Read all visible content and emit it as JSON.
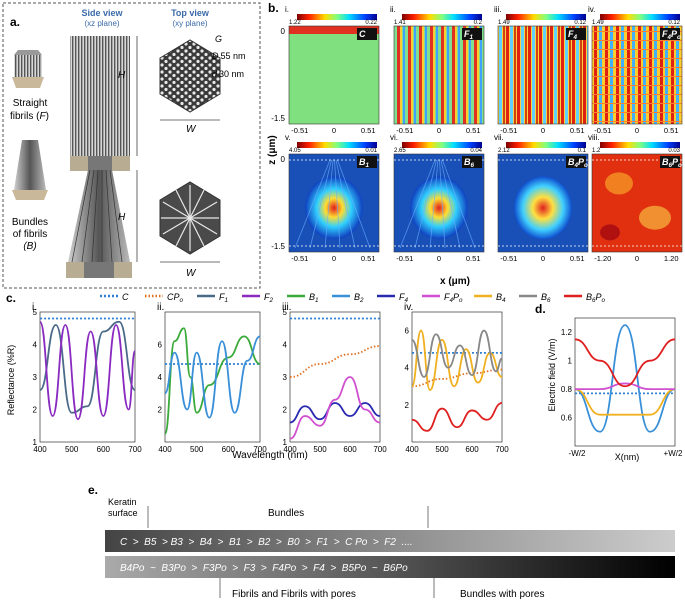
{
  "panel_a": {
    "label": "a.",
    "side_view_title_1": "Side view",
    "side_view_title_2": "(xz plane)",
    "top_view_title_1": "Top view",
    "top_view_title_2": "(xy plane)",
    "straight_1": "Straight",
    "straight_2": "fibrils (",
    "straight_f": "F",
    "straight_close": ")",
    "bundles_1": "Bundles",
    "bundles_2": "of fibrils",
    "bundles_3": "(B)",
    "H": "H",
    "W": "W",
    "G": "G",
    "D": "D",
    "D_val": "55 nm",
    "d": "d",
    "d_val": "30 nm",
    "colors": {
      "title": "#3a6aa8"
    }
  },
  "panel_b": {
    "label": "b.",
    "zlabel": "z (μm)",
    "xlabel": "x (μm)",
    "maps": [
      {
        "roman": "i.",
        "cmax": "1.22",
        "cmin": "0.22",
        "tag": "C"
      },
      {
        "roman": "ii.",
        "cmax": "1.41",
        "cmin": "0.2",
        "tag": "F1"
      },
      {
        "roman": "iii.",
        "cmax": "1.49",
        "cmin": "0.12",
        "tag": "F4"
      },
      {
        "roman": "iv.",
        "cmax": "1.49",
        "cmin": "0.12",
        "tag": "F4Po"
      },
      {
        "roman": "v.",
        "cmax": "4.05",
        "cmin": "0.01",
        "tag": "B1"
      },
      {
        "roman": "vi.",
        "cmax": "2.65",
        "cmin": "0.04",
        "tag": "B6"
      },
      {
        "roman": "vii.",
        "cmax": "2.12",
        "cmin": "0.1",
        "tag": "B4Po"
      },
      {
        "roman": "viii.",
        "cmax": "1.2",
        "cmin": "0.03",
        "tag": "B6Po"
      }
    ],
    "z_ticks": [
      "0",
      "-1.5"
    ],
    "x_ticks": [
      "-0.51",
      "0",
      "0.51"
    ],
    "x_ticks_wide": [
      "-1.20",
      "0",
      "1.20"
    ]
  },
  "panel_c": {
    "label": "c.",
    "ylabel": "Reflectance (%R)",
    "xlabel": "Wavelength (nm)",
    "legend": [
      {
        "key": "C",
        "color": "#2f7fd0"
      },
      {
        "key": "CPo",
        "color": "#e07020"
      },
      {
        "key": "F1",
        "color": "#4a6a88"
      },
      {
        "key": "F2",
        "color": "#8a2ac0"
      },
      {
        "key": "B1",
        "color": "#3aaa3a"
      },
      {
        "key": "B2",
        "color": "#3a90d8"
      },
      {
        "key": "F4",
        "color": "#2a2ab0"
      },
      {
        "key": "F4Po",
        "color": "#d050d0"
      },
      {
        "key": "B4",
        "color": "#f0b020"
      },
      {
        "key": "B6",
        "color": "#888888"
      },
      {
        "key": "B6Po",
        "color": "#e02020"
      }
    ],
    "sub": [
      "i.",
      "ii.",
      "iii.",
      "iv."
    ],
    "x_ticks": [
      "400",
      "500",
      "600",
      "700"
    ]
  },
  "panel_d": {
    "label": "d.",
    "ylabel": "Electric field (V/m)",
    "xlabel": "X(nm)",
    "y_ticks": [
      "1.2",
      "1",
      "0.8",
      "0.6"
    ],
    "x_ticks": [
      "-W/2",
      "+W/2"
    ]
  },
  "panel_e": {
    "label": "e.",
    "keratin_1": "Keratin",
    "keratin_2": "surface",
    "bundles": "Bundles",
    "fibrils": "Fibrils and Fibrils with pores",
    "bundles_pores": "Bundles with pores",
    "row1": "C  >  B5  > B3  >  B4  >  B1  >  B2  >  B0  >  F1  >  C Po  >  F2  ....",
    "row2": "B4Po  ~  B3Po  >  F3Po  >  F3  >  F4Po  >  F4  >  B5Po  ~  B6Po"
  },
  "chart_data": [
    {
      "type": "line",
      "title": "c.i",
      "xlabel": "Wavelength (nm)",
      "ylabel": "Reflectance (%R)",
      "xlim": [
        400,
        700
      ],
      "ylim": [
        1,
        5
      ],
      "series": [
        {
          "name": "C",
          "x": [
            400,
            700
          ],
          "values": [
            4.8,
            4.8
          ]
        },
        {
          "name": "F1",
          "x": [
            400,
            450,
            500,
            550,
            600,
            650,
            700
          ],
          "values": [
            2.6,
            4.6,
            1.9,
            2.1,
            4.4,
            4.7,
            2.6
          ]
        },
        {
          "name": "F2",
          "x": [
            400,
            440,
            480,
            520,
            560,
            600,
            640,
            680,
            700
          ],
          "values": [
            4.7,
            1.8,
            4.6,
            1.7,
            4.4,
            1.8,
            4.6,
            2.0,
            3.8
          ]
        }
      ]
    },
    {
      "type": "line",
      "title": "c.ii",
      "xlim": [
        400,
        700
      ],
      "ylim": [
        0,
        8
      ],
      "series": [
        {
          "name": "C",
          "x": [
            400,
            700
          ],
          "values": [
            4.8,
            4.8
          ]
        },
        {
          "name": "B1",
          "x": [
            400,
            430,
            460,
            480,
            500,
            540,
            600,
            650,
            700
          ],
          "values": [
            0.5,
            6.2,
            7.0,
            4.0,
            1.8,
            3.5,
            5.2,
            6.5,
            4.8
          ]
        },
        {
          "name": "B2",
          "x": [
            400,
            430,
            470,
            500,
            540,
            580,
            620,
            660,
            700
          ],
          "values": [
            3.0,
            5.5,
            2.0,
            5.5,
            1.5,
            6.2,
            1.8,
            5.0,
            6.5
          ]
        }
      ]
    },
    {
      "type": "line",
      "title": "c.iii",
      "xlim": [
        400,
        700
      ],
      "ylim": [
        1,
        5
      ],
      "series": [
        {
          "name": "C",
          "x": [
            400,
            700
          ],
          "values": [
            4.8,
            4.8
          ]
        },
        {
          "name": "CPo",
          "x": [
            400,
            500,
            600,
            700
          ],
          "values": [
            3.0,
            3.4,
            3.7,
            3.95
          ]
        },
        {
          "name": "F4",
          "x": [
            400,
            450,
            500,
            550,
            600,
            650,
            700
          ],
          "values": [
            1.6,
            2.1,
            1.7,
            2.2,
            1.8,
            2.2,
            1.8
          ]
        },
        {
          "name": "F4Po",
          "x": [
            400,
            450,
            500,
            550,
            600,
            650,
            700
          ],
          "values": [
            1.1,
            1.8,
            1.5,
            2.3,
            3.0,
            2.0,
            1.6
          ]
        }
      ]
    },
    {
      "type": "line",
      "title": "c.iv",
      "xlim": [
        400,
        700
      ],
      "ylim": [
        0,
        7
      ],
      "series": [
        {
          "name": "C",
          "x": [
            400,
            700
          ],
          "values": [
            4.8,
            4.8
          ]
        },
        {
          "name": "CPo",
          "x": [
            400,
            500,
            600,
            700
          ],
          "values": [
            3.0,
            3.4,
            3.7,
            3.9
          ]
        },
        {
          "name": "B4",
          "x": [
            400,
            430,
            460,
            500,
            540,
            580,
            620,
            660,
            700
          ],
          "values": [
            3.0,
            6.0,
            2.8,
            5.5,
            3.0,
            5.0,
            3.2,
            4.8,
            3.5
          ]
        },
        {
          "name": "B6",
          "x": [
            400,
            440,
            480,
            520,
            560,
            600,
            640,
            680,
            700
          ],
          "values": [
            5.5,
            3.5,
            5.8,
            4.0,
            5.2,
            3.6,
            6.0,
            3.8,
            4.5
          ]
        },
        {
          "name": "B6Po",
          "x": [
            400,
            450,
            500,
            550,
            600,
            650,
            700
          ],
          "values": [
            1.2,
            0.6,
            1.8,
            0.8,
            1.7,
            1.2,
            2.1
          ]
        }
      ]
    },
    {
      "type": "line",
      "title": "d",
      "xlabel": "X(nm)",
      "ylabel": "Electric field (V/m)",
      "ylim": [
        0.4,
        1.3
      ],
      "series": [
        {
          "name": "C",
          "values": [
            0.77,
            0.77,
            0.77,
            0.77,
            0.77
          ]
        },
        {
          "name": "B2",
          "values": [
            0.8,
            0.5,
            1.25,
            0.5,
            0.8
          ]
        },
        {
          "name": "B4",
          "values": [
            0.8,
            0.62,
            0.62,
            0.62,
            0.8
          ]
        },
        {
          "name": "F4Po",
          "values": [
            0.8,
            0.8,
            0.84,
            0.8,
            0.8
          ]
        },
        {
          "name": "B6Po",
          "values": [
            1.15,
            1.0,
            0.82,
            1.0,
            1.15
          ]
        }
      ]
    }
  ]
}
